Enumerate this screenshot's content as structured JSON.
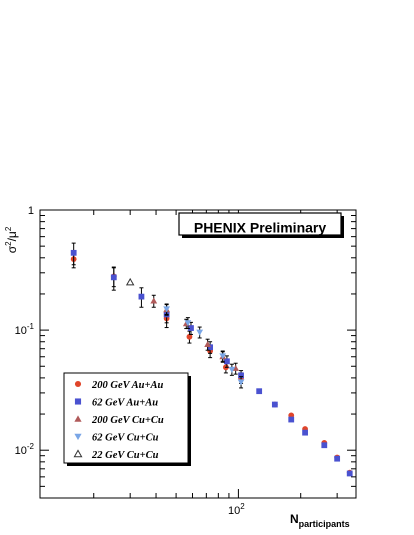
{
  "chart_data": {
    "type": "scatter",
    "title": "PHENIX Preliminary",
    "xlabel_main": "N",
    "xlabel_sub": "participants",
    "ylabel_main": "σ",
    "ylabel_sup1": "2",
    "ylabel_mid": "/μ",
    "ylabel_sup2": "2",
    "x_scale": "log",
    "y_scale": "log",
    "xlim": [
      11,
      370
    ],
    "ylim": [
      0.004,
      1
    ],
    "y_ticks": [
      {
        "value": 1,
        "base": "1",
        "exp": ""
      },
      {
        "value": 0.1,
        "base": "10",
        "exp": "-1"
      },
      {
        "value": 0.01,
        "base": "10",
        "exp": "-2"
      }
    ],
    "x_ticks": [
      {
        "value": 100,
        "base": "10",
        "exp": "2"
      }
    ],
    "grid": false,
    "legend_position": "bottom-left",
    "series": [
      {
        "name": "200 GeV Au+Au",
        "marker": "circle",
        "color": "#e0452a",
        "points": [
          {
            "x": 16,
            "y": 0.39,
            "err": 0.06
          },
          {
            "x": 25,
            "y": 0.28,
            "err": 0.05
          },
          {
            "x": 45,
            "y": 0.125,
            "err": 0.02
          },
          {
            "x": 58,
            "y": 0.088,
            "err": 0.01
          },
          {
            "x": 73,
            "y": 0.067,
            "err": 0.008
          },
          {
            "x": 87,
            "y": 0.049,
            "err": 0.005
          },
          {
            "x": 103,
            "y": 0.04,
            "err": 0.004
          },
          {
            "x": 150,
            "y": 0.024
          },
          {
            "x": 180,
            "y": 0.0195
          },
          {
            "x": 210,
            "y": 0.015
          },
          {
            "x": 260,
            "y": 0.0115
          },
          {
            "x": 300,
            "y": 0.0087
          },
          {
            "x": 345,
            "y": 0.0065
          }
        ]
      },
      {
        "name": "62 GeV Au+Au",
        "marker": "square",
        "color": "#4a52d0",
        "points": [
          {
            "x": 16,
            "y": 0.44,
            "err": 0.09
          },
          {
            "x": 25,
            "y": 0.275,
            "err": 0.06
          },
          {
            "x": 34,
            "y": 0.19,
            "err": 0.035
          },
          {
            "x": 45,
            "y": 0.135,
            "err": 0.02
          },
          {
            "x": 59,
            "y": 0.104,
            "err": 0.012
          },
          {
            "x": 73,
            "y": 0.072,
            "err": 0.008
          },
          {
            "x": 88,
            "y": 0.055,
            "err": 0.006
          },
          {
            "x": 103,
            "y": 0.042,
            "err": 0.004
          },
          {
            "x": 126,
            "y": 0.031
          },
          {
            "x": 150,
            "y": 0.024
          },
          {
            "x": 180,
            "y": 0.018
          },
          {
            "x": 210,
            "y": 0.014
          },
          {
            "x": 260,
            "y": 0.011
          },
          {
            "x": 300,
            "y": 0.0085
          },
          {
            "x": 345,
            "y": 0.0064
          }
        ]
      },
      {
        "name": "200 GeV Cu+Cu",
        "marker": "triangle",
        "color": "#b05a5a",
        "points": [
          {
            "x": 39,
            "y": 0.175,
            "err": 0.02
          },
          {
            "x": 45,
            "y": 0.148,
            "err": 0.015
          },
          {
            "x": 56,
            "y": 0.113,
            "err": 0.01
          },
          {
            "x": 71,
            "y": 0.076,
            "err": 0.008
          },
          {
            "x": 84,
            "y": 0.06,
            "err": 0.006
          },
          {
            "x": 97,
            "y": 0.048,
            "err": 0.005
          }
        ]
      },
      {
        "name": "62 GeV Cu+Cu",
        "marker": "triangle-down",
        "color": "#7aa6e6",
        "points": [
          {
            "x": 45,
            "y": 0.15,
            "err": 0.015
          },
          {
            "x": 57,
            "y": 0.115,
            "err": 0.012
          },
          {
            "x": 65,
            "y": 0.096,
            "err": 0.01
          },
          {
            "x": 84,
            "y": 0.061,
            "err": 0.006
          },
          {
            "x": 93,
            "y": 0.047,
            "err": 0.005
          },
          {
            "x": 103,
            "y": 0.037,
            "err": 0.004
          }
        ]
      },
      {
        "name": "22 GeV Cu+Cu",
        "marker": "triangle-open",
        "color": "#333333",
        "points": [
          {
            "x": 30,
            "y": 0.25
          }
        ]
      }
    ]
  }
}
